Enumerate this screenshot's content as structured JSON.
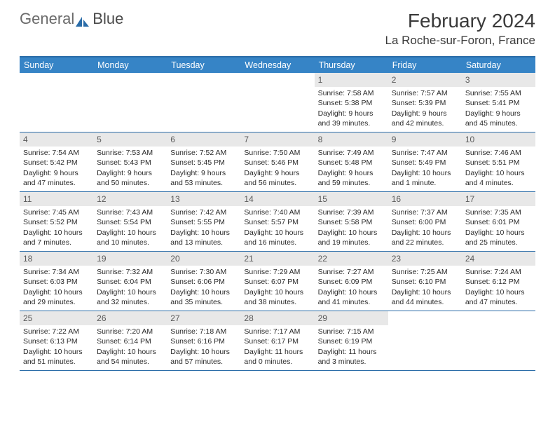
{
  "brand": {
    "part1": "General",
    "part2": "Blue"
  },
  "title": "February 2024",
  "location": "La Roche-sur-Foron, France",
  "colors": {
    "header_bg": "#3684c6",
    "header_border": "#2a6ca8",
    "daynum_bg": "#e8e8e8",
    "text": "#2a2a2a",
    "weekday_text": "#ffffff"
  },
  "weekdays": [
    "Sunday",
    "Monday",
    "Tuesday",
    "Wednesday",
    "Thursday",
    "Friday",
    "Saturday"
  ],
  "first_weekday_index": 4,
  "days": [
    {
      "n": 1,
      "sunrise": "7:58 AM",
      "sunset": "5:38 PM",
      "daylight": "9 hours and 39 minutes."
    },
    {
      "n": 2,
      "sunrise": "7:57 AM",
      "sunset": "5:39 PM",
      "daylight": "9 hours and 42 minutes."
    },
    {
      "n": 3,
      "sunrise": "7:55 AM",
      "sunset": "5:41 PM",
      "daylight": "9 hours and 45 minutes."
    },
    {
      "n": 4,
      "sunrise": "7:54 AM",
      "sunset": "5:42 PM",
      "daylight": "9 hours and 47 minutes."
    },
    {
      "n": 5,
      "sunrise": "7:53 AM",
      "sunset": "5:43 PM",
      "daylight": "9 hours and 50 minutes."
    },
    {
      "n": 6,
      "sunrise": "7:52 AM",
      "sunset": "5:45 PM",
      "daylight": "9 hours and 53 minutes."
    },
    {
      "n": 7,
      "sunrise": "7:50 AM",
      "sunset": "5:46 PM",
      "daylight": "9 hours and 56 minutes."
    },
    {
      "n": 8,
      "sunrise": "7:49 AM",
      "sunset": "5:48 PM",
      "daylight": "9 hours and 59 minutes."
    },
    {
      "n": 9,
      "sunrise": "7:47 AM",
      "sunset": "5:49 PM",
      "daylight": "10 hours and 1 minute."
    },
    {
      "n": 10,
      "sunrise": "7:46 AM",
      "sunset": "5:51 PM",
      "daylight": "10 hours and 4 minutes."
    },
    {
      "n": 11,
      "sunrise": "7:45 AM",
      "sunset": "5:52 PM",
      "daylight": "10 hours and 7 minutes."
    },
    {
      "n": 12,
      "sunrise": "7:43 AM",
      "sunset": "5:54 PM",
      "daylight": "10 hours and 10 minutes."
    },
    {
      "n": 13,
      "sunrise": "7:42 AM",
      "sunset": "5:55 PM",
      "daylight": "10 hours and 13 minutes."
    },
    {
      "n": 14,
      "sunrise": "7:40 AM",
      "sunset": "5:57 PM",
      "daylight": "10 hours and 16 minutes."
    },
    {
      "n": 15,
      "sunrise": "7:39 AM",
      "sunset": "5:58 PM",
      "daylight": "10 hours and 19 minutes."
    },
    {
      "n": 16,
      "sunrise": "7:37 AM",
      "sunset": "6:00 PM",
      "daylight": "10 hours and 22 minutes."
    },
    {
      "n": 17,
      "sunrise": "7:35 AM",
      "sunset": "6:01 PM",
      "daylight": "10 hours and 25 minutes."
    },
    {
      "n": 18,
      "sunrise": "7:34 AM",
      "sunset": "6:03 PM",
      "daylight": "10 hours and 29 minutes."
    },
    {
      "n": 19,
      "sunrise": "7:32 AM",
      "sunset": "6:04 PM",
      "daylight": "10 hours and 32 minutes."
    },
    {
      "n": 20,
      "sunrise": "7:30 AM",
      "sunset": "6:06 PM",
      "daylight": "10 hours and 35 minutes."
    },
    {
      "n": 21,
      "sunrise": "7:29 AM",
      "sunset": "6:07 PM",
      "daylight": "10 hours and 38 minutes."
    },
    {
      "n": 22,
      "sunrise": "7:27 AM",
      "sunset": "6:09 PM",
      "daylight": "10 hours and 41 minutes."
    },
    {
      "n": 23,
      "sunrise": "7:25 AM",
      "sunset": "6:10 PM",
      "daylight": "10 hours and 44 minutes."
    },
    {
      "n": 24,
      "sunrise": "7:24 AM",
      "sunset": "6:12 PM",
      "daylight": "10 hours and 47 minutes."
    },
    {
      "n": 25,
      "sunrise": "7:22 AM",
      "sunset": "6:13 PM",
      "daylight": "10 hours and 51 minutes."
    },
    {
      "n": 26,
      "sunrise": "7:20 AM",
      "sunset": "6:14 PM",
      "daylight": "10 hours and 54 minutes."
    },
    {
      "n": 27,
      "sunrise": "7:18 AM",
      "sunset": "6:16 PM",
      "daylight": "10 hours and 57 minutes."
    },
    {
      "n": 28,
      "sunrise": "7:17 AM",
      "sunset": "6:17 PM",
      "daylight": "11 hours and 0 minutes."
    },
    {
      "n": 29,
      "sunrise": "7:15 AM",
      "sunset": "6:19 PM",
      "daylight": "11 hours and 3 minutes."
    }
  ],
  "labels": {
    "sunrise": "Sunrise:",
    "sunset": "Sunset:",
    "daylight": "Daylight:"
  }
}
